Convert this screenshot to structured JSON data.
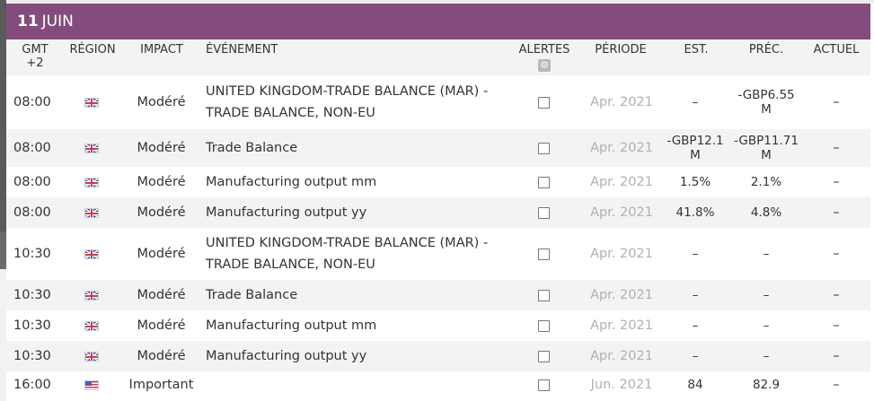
{
  "day": {
    "number": "11",
    "month": "JUIN"
  },
  "columns": {
    "time": "GMT +2",
    "region": "RÉGION",
    "impact": "IMPACT",
    "event": "ÉVÉNEMENT",
    "alerts": "ALERTES",
    "period": "PÉRIODE",
    "est": "EST.",
    "prec": "PRÉC.",
    "actual": "ACTUEL",
    "alerts_settings_icon": "gear-icon"
  },
  "rows": [
    {
      "time": "08:00",
      "region_icon": "uk-flag-icon",
      "impact": "Modéré",
      "event": "UNITED KINGDOM-TRADE BALANCE (MAR) - TRADE BALANCE, NON-EU",
      "period": "Apr. 2021",
      "est": "–",
      "prec": "-GBP6.55 M",
      "actual": "–"
    },
    {
      "time": "08:00",
      "region_icon": "uk-flag-icon",
      "impact": "Modéré",
      "event": "Trade Balance",
      "period": "Apr. 2021",
      "est": "-GBP12.1 M",
      "prec": "-GBP11.71 M",
      "actual": "–"
    },
    {
      "time": "08:00",
      "region_icon": "uk-flag-icon",
      "impact": "Modéré",
      "event": "Manufacturing output mm",
      "period": "Apr. 2021",
      "est": "1.5%",
      "prec": "2.1%",
      "actual": "–"
    },
    {
      "time": "08:00",
      "region_icon": "uk-flag-icon",
      "impact": "Modéré",
      "event": "Manufacturing output yy",
      "period": "Apr. 2021",
      "est": "41.8%",
      "prec": "4.8%",
      "actual": "–"
    },
    {
      "time": "10:30",
      "region_icon": "uk-flag-icon",
      "impact": "Modéré",
      "event": "UNITED KINGDOM-TRADE BALANCE (MAR) - TRADE BALANCE, NON-EU",
      "period": "Apr. 2021",
      "est": "–",
      "prec": "–",
      "actual": "–"
    },
    {
      "time": "10:30",
      "region_icon": "uk-flag-icon",
      "impact": "Modéré",
      "event": "Trade Balance",
      "period": "Apr. 2021",
      "est": "–",
      "prec": "–",
      "actual": "–"
    },
    {
      "time": "10:30",
      "region_icon": "uk-flag-icon",
      "impact": "Modéré",
      "event": "Manufacturing output mm",
      "period": "Apr. 2021",
      "est": "–",
      "prec": "–",
      "actual": "–"
    },
    {
      "time": "10:30",
      "region_icon": "uk-flag-icon",
      "impact": "Modéré",
      "event": "Manufacturing output yy",
      "period": "Apr. 2021",
      "est": "–",
      "prec": "–",
      "actual": "–"
    },
    {
      "time": "16:00",
      "region_icon": "us-flag-icon",
      "impact": "Important",
      "event": "",
      "period": "Jun. 2021",
      "est": "84",
      "prec": "82.9",
      "actual": "–"
    }
  ],
  "colors": {
    "header_bg": "#834c7c",
    "alt_row_bg": "#f3f3f3",
    "period_text": "#b0b0b0"
  }
}
